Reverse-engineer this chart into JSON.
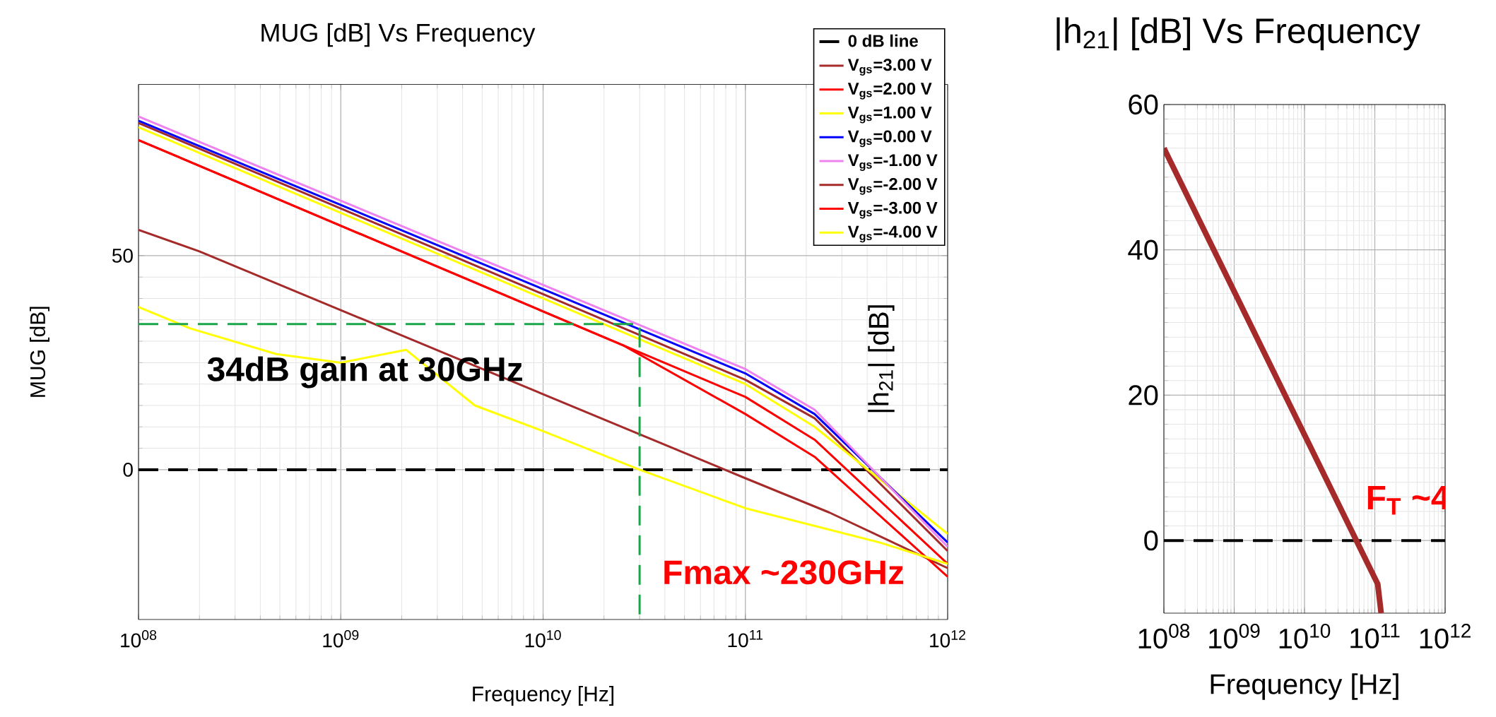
{
  "chart_data": [
    {
      "type": "line",
      "title": "MUG [dB] Vs Frequency",
      "xlabel": "Frequency [Hz]",
      "ylabel": "MUG [dB]",
      "xlim": [
        100000000.0,
        1000000000000.0
      ],
      "ylim": [
        -35,
        90
      ],
      "yticks": [
        0,
        50
      ],
      "xticks": [
        {
          "value": 100000000.0,
          "label": "10$^{08}$"
        },
        {
          "value": 1000000000.0,
          "label": "10$^{09}$"
        },
        {
          "value": 10000000000.0,
          "label": "10$^{10}$"
        },
        {
          "value": 100000000000.0,
          "label": "10$^{11}$"
        },
        {
          "value": 1000000000000.0,
          "label": "10$^{12}$"
        }
      ],
      "log": "x",
      "grid": true,
      "legend": "top right",
      "line_style": "solid",
      "ref_lines": [
        {
          "axis": "y",
          "value": 0,
          "label": "0 dB line",
          "color": "#000000",
          "line_style": "dashed"
        }
      ],
      "annotations": [
        "34dB gain at 30GHz",
        "Fmax ~230GHz"
      ],
      "series": [
        {
          "name": "V$_{gs}$=3.00 V",
          "color": "#a52a2a",
          "x": [
            100000000.0,
            100000000000.0,
            220000000000.0,
            1000000000000.0
          ],
          "values": [
            81,
            21,
            12,
            -19
          ]
        },
        {
          "name": "V$_{gs}$=2.00 V",
          "color": "#ff0000",
          "x": [
            100000000.0,
            25000000000.0,
            100000000000.0,
            220000000000.0,
            1000000000000.0
          ],
          "values": [
            77,
            29,
            17,
            7,
            -22
          ]
        },
        {
          "name": "V$_{gs}$=1.00 V",
          "color": "#ffff00",
          "x": [
            100000000.0,
            100000000000.0,
            220000000000.0,
            1000000000000.0
          ],
          "values": [
            80,
            20,
            10,
            -15
          ]
        },
        {
          "name": "V$_{gs}$=0.00 V",
          "color": "#0000ff",
          "x": [
            100000000.0,
            100000000000.0,
            220000000000.0,
            1000000000000.0
          ],
          "values": [
            81.5,
            22.5,
            13,
            -17
          ]
        },
        {
          "name": "V$_{gs}$=-1.00 V",
          "color": "#ee82ee",
          "x": [
            100000000.0,
            100000000000.0,
            220000000000.0,
            1000000000000.0
          ],
          "values": [
            82.5,
            23.5,
            14,
            -18
          ]
        },
        {
          "name": "V$_{gs}$=-2.00 V",
          "color": "#a52a2a",
          "x": [
            100000000.0,
            200000000.0,
            100000000000.0,
            260000000000.0,
            1000000000000.0
          ],
          "values": [
            56,
            51,
            -2,
            -10,
            -23
          ]
        },
        {
          "name": "V$_{gs}$=-3.00 V",
          "color": "#ff0000",
          "x": [
            100000000.0,
            25000000000.0,
            100000000000.0,
            220000000000.0,
            1000000000000.0
          ],
          "values": [
            77,
            29,
            13,
            3,
            -25
          ]
        },
        {
          "name": "V$_{gs}$=-4.00 V",
          "color": "#ffff00",
          "x": [
            100000000.0,
            180000000.0,
            480000000.0,
            1000000000.0,
            2100000000.0,
            4600000000.0,
            10000000000.0,
            30000000000.0,
            100000000000.0,
            460000000000.0,
            1000000000000.0
          ],
          "values": [
            38,
            33,
            27,
            25,
            28,
            15,
            9,
            0,
            -9,
            -17,
            -22
          ]
        },
        {
          "color": "#1aa54a",
          "line_style": "dashed",
          "x": [
            100000000.0,
            30000000000.0,
            30000000000.0
          ],
          "values": [
            34,
            34,
            -35
          ]
        }
      ]
    },
    {
      "type": "line",
      "title": "|h$_{21}$| [dB] Vs Frequency",
      "xlabel": "Frequency [Hz]",
      "ylabel": "|h$_{21}$| [dB]",
      "xlim": [
        100000000.0,
        1000000000000.0
      ],
      "ylim": [
        -10,
        60
      ],
      "yticks": [
        0,
        20,
        40,
        60
      ],
      "xticks": [
        {
          "value": 100000000.0,
          "label": "10$^{08}$"
        },
        {
          "value": 1000000000.0,
          "label": "10$^{09}$"
        },
        {
          "value": 10000000000.0,
          "label": "10$^{10}$"
        },
        {
          "value": 100000000000.0,
          "label": "10$^{11}$"
        },
        {
          "value": 1000000000000.0,
          "label": "10$^{12}$"
        }
      ],
      "log": "x",
      "grid": true,
      "line_style": "solid",
      "ref_lines": [
        {
          "axis": "y",
          "value": 0,
          "color": "#000000",
          "line_style": "dashed"
        }
      ],
      "annotations": [
        "F$_{T}$ ~4"
      ],
      "series": [
        {
          "color": "#a52a2a",
          "x": [
            100000000.0,
            110000000000.0,
            123000000000.0
          ],
          "values": [
            54,
            -6,
            -10
          ]
        }
      ]
    }
  ]
}
